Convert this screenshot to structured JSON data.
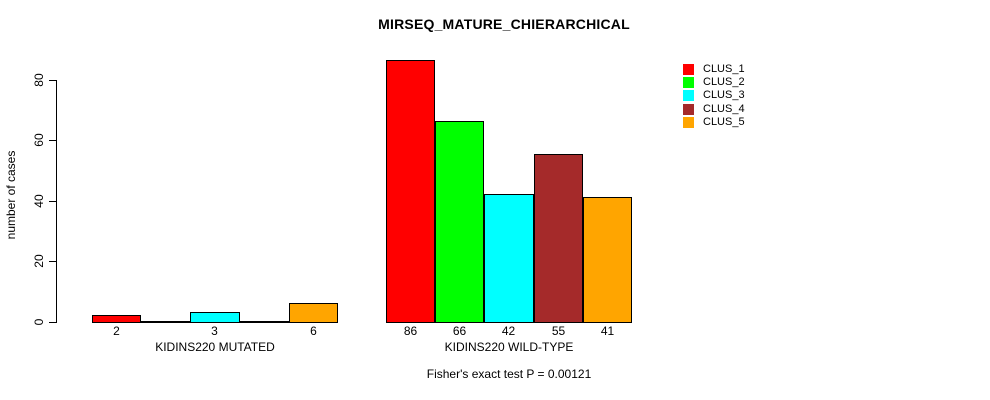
{
  "title": "MIRSEQ_MATURE_CHIERARCHICAL",
  "chart_data": {
    "type": "bar",
    "title": "MIRSEQ_MATURE_CHIERARCHICAL",
    "subtitle": "Fisher's exact test P = 0.00121",
    "ylabel": "number of cases",
    "xlabel": "",
    "ylim": [
      0,
      87
    ],
    "yticks": [
      0,
      20,
      40,
      60,
      80
    ],
    "grid": false,
    "legend_position": "top-right",
    "categories": [
      "KIDINS220 MUTATED",
      "KIDINS220 WILD-TYPE"
    ],
    "series": [
      {
        "name": "CLUS_1",
        "color": "#FF0000",
        "values": [
          2,
          86
        ]
      },
      {
        "name": "CLUS_2",
        "color": "#00FF00",
        "values": [
          0,
          66
        ]
      },
      {
        "name": "CLUS_3",
        "color": "#00FFFF",
        "values": [
          3,
          42
        ]
      },
      {
        "name": "CLUS_4",
        "color": "#A52A2A",
        "values": [
          0,
          55
        ]
      },
      {
        "name": "CLUS_5",
        "color": "#FFA500",
        "values": [
          6,
          41
        ]
      }
    ],
    "bar_labels": {
      "KIDINS220 MUTATED": [
        "2",
        "3",
        "6"
      ],
      "KIDINS220 WILD-TYPE": [
        "86",
        "66",
        "42",
        "55",
        "41"
      ]
    },
    "note": "zero-value bars drawn as flat baseline segments without a number label"
  }
}
